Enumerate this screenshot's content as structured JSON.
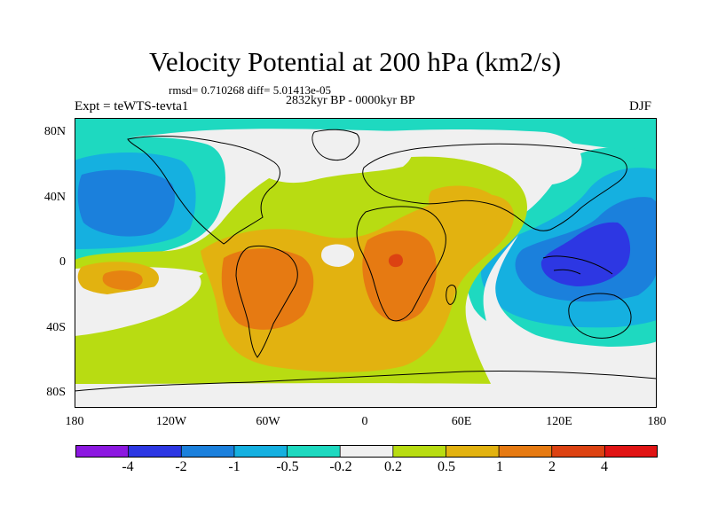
{
  "title": "Velocity Potential at 200 hPa (km2/s)",
  "stats_line": "rmsd= 0.710268 diff= 5.01413e-05",
  "period": "2832kyr BP - 0000kyr BP",
  "experiment": "Expt = teWTS-tevta1",
  "season": "DJF",
  "map": {
    "lat_labels": [
      "80N",
      "40N",
      "0",
      "40S",
      "80S"
    ],
    "lon_labels": [
      "180",
      "120W",
      "60W",
      "0",
      "60E",
      "120E",
      "180"
    ],
    "background_color": "#f0f0f0"
  },
  "colorbar": {
    "colors": [
      "#8c18e0",
      "#2d37e3",
      "#1b80dc",
      "#15b0e0",
      "#1ed9c0",
      "#f0f0f0",
      "#b8dc12",
      "#e2b210",
      "#e67a12",
      "#dc4212",
      "#e01414"
    ],
    "labels": [
      "-4",
      "-2",
      "-1",
      "-0.5",
      "-0.2",
      "0.2",
      "0.5",
      "1",
      "2",
      "4"
    ]
  }
}
